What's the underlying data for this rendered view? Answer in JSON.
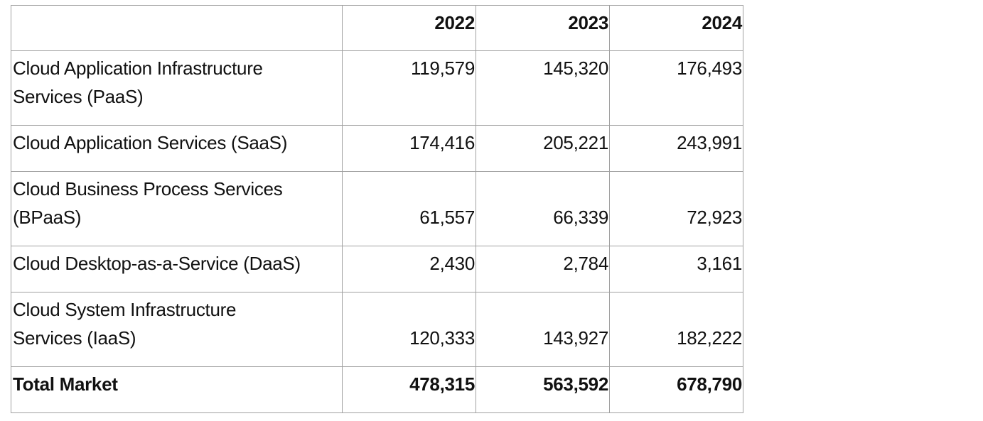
{
  "table": {
    "headers": [
      "",
      "2022",
      "2023",
      "2024"
    ],
    "rows": [
      {
        "label": "Cloud Application Infrastructure Services (PaaS)",
        "values": [
          "119,579",
          "145,320",
          "176,493"
        ]
      },
      {
        "label": "Cloud Application Services (SaaS)",
        "values": [
          "174,416",
          "205,221",
          "243,991"
        ]
      },
      {
        "label": "Cloud Business Process Services (BPaaS)",
        "values": [
          "61,557",
          "66,339",
          "72,923"
        ]
      },
      {
        "label": "Cloud Desktop-as-a-Service (DaaS)",
        "values": [
          "2,430",
          "2,784",
          "3,161"
        ]
      },
      {
        "label": "Cloud System Infrastructure Services (IaaS)",
        "values": [
          "120,333",
          "143,927",
          "182,222"
        ]
      }
    ],
    "total": {
      "label": "Total Market",
      "values": [
        "478,315",
        "563,592",
        "678,790"
      ]
    }
  }
}
